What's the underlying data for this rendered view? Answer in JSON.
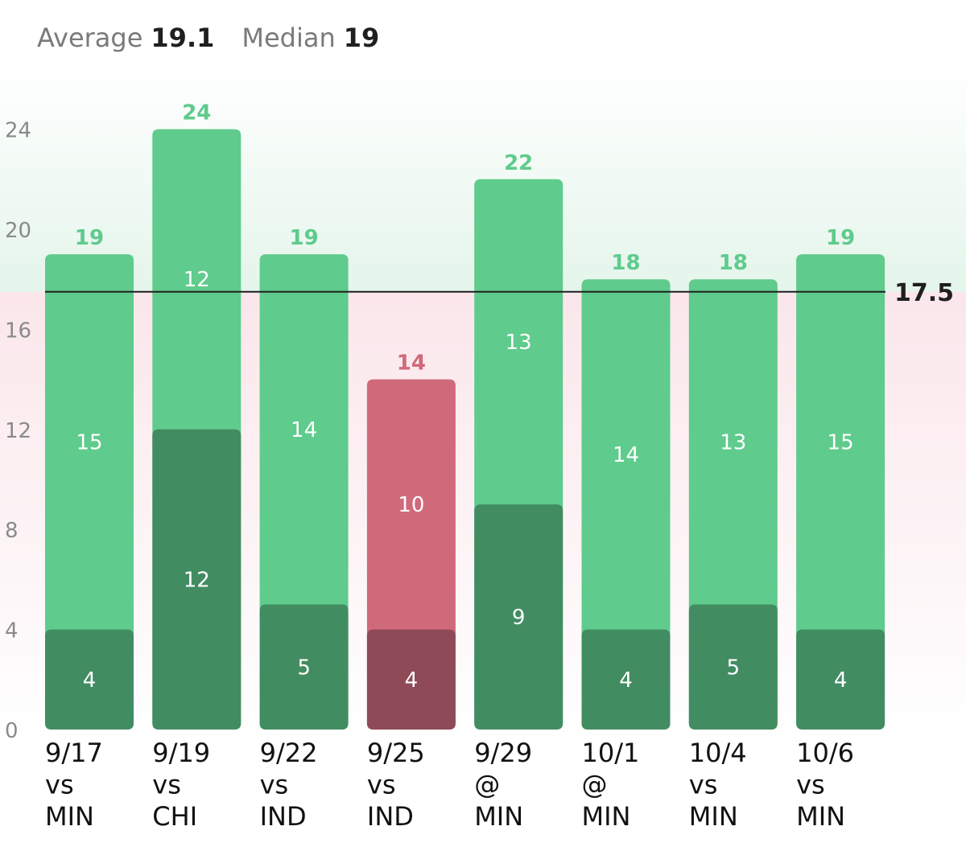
{
  "stats": {
    "average_label": "Average",
    "average_value": "19.1",
    "median_label": "Median",
    "median_value": "19"
  },
  "colors": {
    "over_total": "#5fcb8c",
    "over_base": "#428c62",
    "under_total": "#d06a7a",
    "under_base": "#8f4a57",
    "over_label": "#5fcb8c",
    "under_label": "#d06a7a",
    "over_zone": "#e7f6ee",
    "under_zone": "#fbe9ed",
    "threshold_line": "#1f1f1f"
  },
  "chart_data": {
    "type": "bar",
    "stacked": true,
    "categories": [
      [
        "9/17",
        "vs",
        "MIN"
      ],
      [
        "9/19",
        "vs",
        "CHI"
      ],
      [
        "9/22",
        "vs",
        "IND"
      ],
      [
        "9/25",
        "vs",
        "IND"
      ],
      [
        "9/29",
        "@",
        "MIN"
      ],
      [
        "10/1",
        "@",
        "MIN"
      ],
      [
        "10/4",
        "vs",
        "MIN"
      ],
      [
        "10/6",
        "vs",
        "MIN"
      ]
    ],
    "series": [
      {
        "values": [
          4,
          12,
          5,
          4,
          9,
          4,
          5,
          4
        ]
      },
      {
        "values": [
          15,
          12,
          14,
          10,
          13,
          14,
          13,
          15
        ]
      }
    ],
    "totals": [
      19,
      24,
      19,
      14,
      22,
      18,
      18,
      19
    ],
    "threshold": 17.5,
    "threshold_label": "17.5",
    "ylim": [
      0,
      25
    ],
    "yticks": [
      0,
      4,
      8,
      12,
      16,
      20,
      24
    ],
    "grid": false
  }
}
